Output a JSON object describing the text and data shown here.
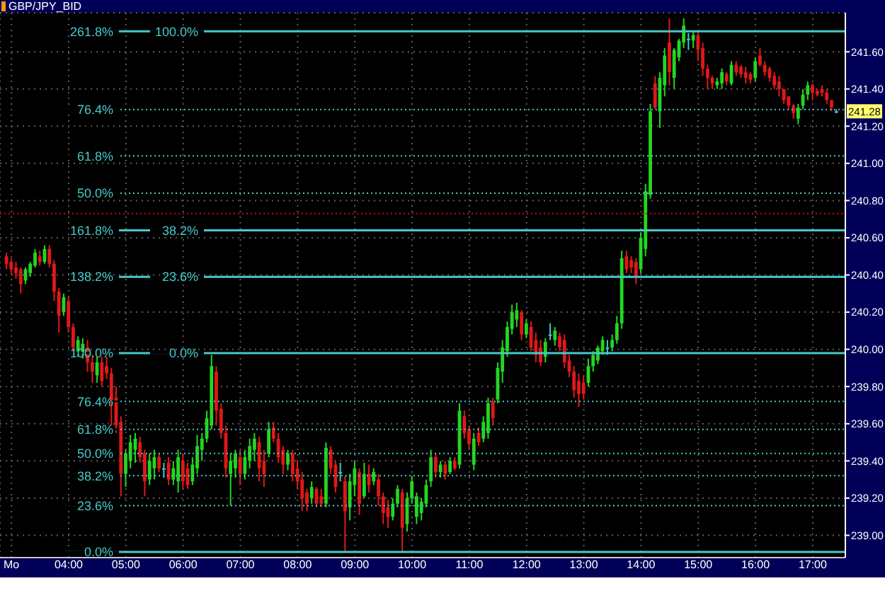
{
  "chart_data": {
    "type": "candlestick",
    "title": "GBP/JPY_BID",
    "x": [
      2.917,
      3,
      3.083,
      3.167,
      3.25,
      3.333,
      3.417,
      3.5,
      3.583,
      3.667,
      3.75,
      3.833,
      3.917,
      4,
      4.083,
      4.167,
      4.25,
      4.333,
      4.417,
      4.5,
      4.583,
      4.667,
      4.75,
      4.833,
      4.917,
      5,
      5.083,
      5.167,
      5.25,
      5.333,
      5.417,
      5.5,
      5.583,
      5.667,
      5.75,
      5.833,
      5.917,
      6,
      6.083,
      6.167,
      6.25,
      6.333,
      6.417,
      6.5,
      6.583,
      6.667,
      6.75,
      6.833,
      6.917,
      7,
      7.083,
      7.167,
      7.25,
      7.333,
      7.417,
      7.5,
      7.583,
      7.667,
      7.75,
      7.833,
      7.917,
      8,
      8.083,
      8.167,
      8.25,
      8.333,
      8.417,
      8.5,
      8.583,
      8.667,
      8.75,
      8.833,
      8.917,
      9,
      9.083,
      9.167,
      9.25,
      9.333,
      9.417,
      9.5,
      9.583,
      9.667,
      9.75,
      9.833,
      9.917,
      10,
      10.083,
      10.167,
      10.25,
      10.333,
      10.417,
      10.5,
      10.583,
      10.667,
      10.75,
      10.833,
      10.917,
      11,
      11.083,
      11.167,
      11.25,
      11.333,
      11.417,
      11.5,
      11.583,
      11.667,
      11.75,
      11.833,
      11.917,
      12,
      12.083,
      12.167,
      12.25,
      12.333,
      12.417,
      12.5,
      12.583,
      12.667,
      12.75,
      12.833,
      12.917,
      13,
      13.083,
      13.167,
      13.25,
      13.333,
      13.417,
      13.5,
      13.583,
      13.667,
      13.75,
      13.833,
      13.917,
      14,
      14.083,
      14.167,
      14.25,
      14.333,
      14.417,
      14.5,
      14.583,
      14.667,
      14.75,
      14.833,
      14.917,
      15,
      15.083,
      15.167,
      15.25,
      15.333,
      15.417,
      15.5,
      15.583,
      15.667,
      15.75,
      15.833,
      15.917,
      16,
      16.083,
      16.167,
      16.25,
      16.333,
      16.417,
      16.5,
      16.583,
      16.667,
      16.75,
      16.833,
      16.917,
      17,
      17.083,
      17.167,
      17.25,
      17.333,
      17.417
    ],
    "ohlc": [
      [
        240.5,
        240.52,
        240.43,
        240.46
      ],
      [
        240.47,
        240.49,
        240.41,
        240.43
      ],
      [
        240.44,
        240.47,
        240.38,
        240.41
      ],
      [
        240.43,
        240.44,
        240.3,
        240.35
      ],
      [
        240.37,
        240.44,
        240.35,
        240.43
      ],
      [
        240.41,
        240.47,
        240.39,
        240.46
      ],
      [
        240.45,
        240.54,
        240.44,
        240.52
      ],
      [
        240.5,
        240.53,
        240.45,
        240.47
      ],
      [
        240.47,
        240.56,
        240.46,
        240.54
      ],
      [
        240.54,
        240.56,
        240.44,
        240.46
      ],
      [
        240.46,
        240.48,
        240.26,
        240.31
      ],
      [
        240.31,
        240.33,
        240.09,
        240.18
      ],
      [
        240.2,
        240.3,
        240.18,
        240.28
      ],
      [
        240.26,
        240.28,
        240.09,
        240.12
      ],
      [
        240.12,
        240.14,
        239.97,
        240.01
      ],
      [
        239.99,
        240.07,
        239.96,
        240.05
      ],
      [
        239.97,
        240.06,
        239.95,
        240.03
      ],
      [
        240.01,
        240.05,
        239.88,
        239.93
      ],
      [
        239.93,
        239.97,
        239.82,
        239.88
      ],
      [
        239.86,
        239.96,
        239.82,
        239.93
      ],
      [
        239.93,
        239.96,
        239.8,
        239.83
      ],
      [
        239.91,
        239.96,
        239.84,
        239.87
      ],
      [
        239.87,
        239.9,
        239.59,
        239.71
      ],
      [
        239.74,
        239.8,
        239.55,
        239.59
      ],
      [
        239.61,
        239.64,
        239.21,
        239.33
      ],
      [
        239.33,
        239.46,
        239.26,
        239.44
      ],
      [
        239.4,
        239.54,
        239.36,
        239.5
      ],
      [
        239.46,
        239.55,
        239.39,
        239.52
      ],
      [
        239.5,
        239.53,
        239.39,
        239.42
      ],
      [
        239.44,
        239.46,
        239.21,
        239.29
      ],
      [
        239.3,
        239.44,
        239.27,
        239.4
      ],
      [
        239.36,
        239.46,
        239.3,
        239.42
      ],
      [
        239.42,
        239.44,
        239.34,
        239.36
      ],
      [
        239.36,
        239.39,
        239.31,
        239.36
      ],
      [
        239.39,
        239.42,
        239.27,
        239.3
      ],
      [
        239.3,
        239.4,
        239.27,
        239.36
      ],
      [
        239.29,
        239.46,
        239.23,
        239.42
      ],
      [
        239.4,
        239.44,
        239.25,
        239.29
      ],
      [
        239.36,
        239.39,
        239.25,
        239.27
      ],
      [
        239.29,
        239.42,
        239.27,
        239.38
      ],
      [
        239.36,
        239.54,
        239.33,
        239.48
      ],
      [
        239.46,
        239.55,
        239.4,
        239.52
      ],
      [
        239.52,
        239.67,
        239.5,
        239.63
      ],
      [
        239.59,
        239.97,
        239.57,
        239.91
      ],
      [
        239.88,
        239.91,
        239.59,
        239.67
      ],
      [
        239.68,
        239.71,
        239.52,
        239.55
      ],
      [
        239.55,
        239.59,
        239.31,
        239.36
      ],
      [
        239.33,
        239.44,
        239.16,
        239.4
      ],
      [
        239.36,
        239.46,
        239.31,
        239.44
      ],
      [
        239.42,
        239.46,
        239.27,
        239.33
      ],
      [
        239.33,
        239.46,
        239.3,
        239.42
      ],
      [
        239.4,
        239.52,
        239.36,
        239.48
      ],
      [
        239.46,
        239.55,
        239.4,
        239.52
      ],
      [
        239.5,
        239.53,
        239.29,
        239.36
      ],
      [
        239.4,
        239.46,
        239.26,
        239.33
      ],
      [
        239.44,
        239.61,
        239.42,
        239.57
      ],
      [
        239.58,
        239.61,
        239.5,
        239.52
      ],
      [
        239.52,
        239.55,
        239.39,
        239.42
      ],
      [
        239.46,
        239.48,
        239.33,
        239.38
      ],
      [
        239.38,
        239.46,
        239.35,
        239.44
      ],
      [
        239.44,
        239.46,
        239.29,
        239.33
      ],
      [
        239.36,
        239.4,
        239.25,
        239.29
      ],
      [
        239.3,
        239.34,
        239.13,
        239.2
      ],
      [
        239.23,
        239.25,
        239.13,
        239.17
      ],
      [
        239.2,
        239.29,
        239.17,
        239.26
      ],
      [
        239.25,
        239.26,
        239.15,
        239.17
      ],
      [
        239.21,
        239.25,
        239.15,
        239.17
      ],
      [
        239.17,
        239.5,
        239.15,
        239.47
      ],
      [
        239.46,
        239.48,
        239.33,
        239.36
      ],
      [
        239.38,
        239.4,
        239.23,
        239.26
      ],
      [
        239.34,
        239.39,
        239.29,
        239.34
      ],
      [
        239.29,
        239.32,
        238.91,
        239.13
      ],
      [
        239.15,
        239.33,
        239.08,
        239.29
      ],
      [
        239.27,
        239.4,
        239.21,
        239.36
      ],
      [
        239.34,
        239.36,
        239.11,
        239.17
      ],
      [
        239.21,
        239.39,
        239.2,
        239.33
      ],
      [
        239.33,
        239.38,
        239.23,
        239.27
      ],
      [
        239.29,
        239.36,
        239.27,
        239.34
      ],
      [
        239.3,
        239.33,
        239.16,
        239.21
      ],
      [
        239.21,
        239.23,
        239.06,
        239.12
      ],
      [
        239.15,
        239.19,
        239.04,
        239.1
      ],
      [
        239.1,
        239.2,
        239.08,
        239.17
      ],
      [
        239.17,
        239.27,
        239.15,
        239.25
      ],
      [
        239.23,
        239.25,
        238.91,
        239.04
      ],
      [
        239.06,
        239.23,
        239.02,
        239.2
      ],
      [
        239.2,
        239.32,
        239.17,
        239.29
      ],
      [
        239.1,
        239.23,
        239.06,
        239.21
      ],
      [
        239.12,
        239.2,
        239.08,
        239.18
      ],
      [
        239.17,
        239.3,
        239.15,
        239.27
      ],
      [
        239.29,
        239.46,
        239.26,
        239.42
      ],
      [
        239.42,
        239.44,
        239.31,
        239.34
      ],
      [
        239.34,
        239.4,
        239.31,
        239.38
      ],
      [
        239.38,
        239.4,
        239.3,
        239.33
      ],
      [
        239.34,
        239.42,
        239.33,
        239.4
      ],
      [
        239.4,
        239.42,
        239.35,
        239.36
      ],
      [
        239.38,
        239.71,
        239.36,
        239.67
      ],
      [
        239.64,
        239.67,
        239.52,
        239.55
      ],
      [
        239.57,
        239.59,
        239.46,
        239.49
      ],
      [
        239.38,
        239.55,
        239.35,
        239.52
      ],
      [
        239.55,
        239.58,
        239.48,
        239.5
      ],
      [
        239.52,
        239.64,
        239.5,
        239.61
      ],
      [
        239.55,
        239.74,
        239.52,
        239.71
      ],
      [
        239.72,
        239.74,
        239.59,
        239.63
      ],
      [
        239.73,
        239.93,
        239.71,
        239.9
      ],
      [
        239.88,
        240.05,
        239.82,
        240.01
      ],
      [
        239.99,
        240.15,
        239.96,
        240.12
      ],
      [
        240.11,
        240.24,
        240.08,
        240.2
      ],
      [
        240.16,
        240.25,
        240.12,
        240.21
      ],
      [
        240.2,
        240.21,
        240.05,
        240.08
      ],
      [
        240.08,
        240.16,
        240.06,
        240.14
      ],
      [
        240.12,
        240.15,
        239.99,
        240.01
      ],
      [
        240.05,
        240.09,
        239.93,
        239.97
      ],
      [
        240.01,
        240.05,
        239.91,
        239.93
      ],
      [
        239.96,
        240.06,
        239.93,
        240.04
      ],
      [
        240.08,
        240.14,
        240.05,
        240.08
      ],
      [
        240.05,
        240.12,
        240.02,
        240.1
      ],
      [
        240.07,
        240.09,
        239.99,
        240.01
      ],
      [
        240.05,
        240.08,
        239.9,
        239.93
      ],
      [
        239.94,
        239.97,
        239.85,
        239.88
      ],
      [
        239.88,
        239.91,
        239.74,
        239.78
      ],
      [
        239.83,
        239.87,
        239.69,
        239.76
      ],
      [
        239.82,
        239.86,
        239.73,
        239.76
      ],
      [
        239.82,
        239.95,
        239.8,
        239.91
      ],
      [
        239.91,
        239.99,
        239.88,
        239.97
      ],
      [
        239.94,
        240.02,
        239.92,
        240.01
      ],
      [
        239.99,
        240.07,
        239.97,
        240.05
      ],
      [
        240.01,
        240.05,
        239.97,
        240.01
      ],
      [
        240.01,
        240.08,
        239.99,
        240.05
      ],
      [
        240.05,
        240.18,
        240.03,
        240.14
      ],
      [
        240.14,
        240.53,
        240.11,
        240.49
      ],
      [
        240.5,
        240.53,
        240.41,
        240.43
      ],
      [
        240.48,
        240.5,
        240.41,
        240.44
      ],
      [
        240.47,
        240.49,
        240.35,
        240.39
      ],
      [
        240.43,
        240.63,
        240.41,
        240.6
      ],
      [
        240.54,
        240.89,
        240.5,
        240.85
      ],
      [
        240.83,
        241.32,
        240.81,
        241.28
      ],
      [
        241.43,
        241.47,
        241.29,
        241.3
      ],
      [
        241.28,
        241.49,
        241.19,
        241.46
      ],
      [
        241.42,
        241.62,
        241.36,
        241.58
      ],
      [
        241.65,
        241.78,
        241.42,
        241.49
      ],
      [
        241.46,
        241.62,
        241.4,
        241.61
      ],
      [
        241.57,
        241.67,
        241.55,
        241.66
      ],
      [
        241.65,
        241.78,
        241.62,
        241.74
      ],
      [
        241.67,
        241.7,
        241.61,
        241.67
      ],
      [
        241.66,
        241.71,
        241.62,
        241.69
      ],
      [
        241.69,
        241.71,
        241.55,
        241.61
      ],
      [
        241.62,
        241.65,
        241.47,
        241.51
      ],
      [
        241.51,
        241.53,
        241.4,
        241.46
      ],
      [
        241.46,
        241.47,
        241.4,
        241.43
      ],
      [
        241.42,
        241.46,
        241.4,
        241.44
      ],
      [
        241.43,
        241.51,
        241.4,
        241.49
      ],
      [
        241.48,
        241.49,
        241.42,
        241.44
      ],
      [
        241.43,
        241.55,
        241.42,
        241.53
      ],
      [
        241.53,
        241.55,
        241.47,
        241.49
      ],
      [
        241.52,
        241.53,
        241.46,
        241.48
      ],
      [
        241.49,
        241.52,
        241.43,
        241.46
      ],
      [
        241.48,
        241.49,
        241.43,
        241.45
      ],
      [
        241.46,
        241.57,
        241.44,
        241.55
      ],
      [
        241.58,
        241.62,
        241.52,
        241.53
      ],
      [
        241.53,
        241.55,
        241.47,
        241.49
      ],
      [
        241.51,
        241.52,
        241.44,
        241.46
      ],
      [
        241.47,
        241.49,
        241.4,
        241.42
      ],
      [
        241.44,
        241.47,
        241.36,
        241.4
      ],
      [
        241.4,
        241.4,
        241.32,
        241.34
      ],
      [
        241.36,
        241.36,
        241.29,
        241.31
      ],
      [
        241.31,
        241.32,
        241.24,
        241.27
      ],
      [
        241.24,
        241.32,
        241.21,
        241.3
      ],
      [
        241.31,
        241.4,
        241.29,
        241.37
      ],
      [
        241.37,
        241.44,
        241.34,
        241.42
      ],
      [
        241.42,
        241.43,
        241.34,
        241.38
      ],
      [
        241.39,
        241.4,
        241.36,
        241.37
      ],
      [
        241.4,
        241.42,
        241.36,
        241.38
      ],
      [
        241.38,
        241.4,
        241.32,
        241.34
      ],
      [
        241.34,
        241.34,
        241.28,
        241.3
      ],
      [
        241.28,
        241.29,
        241.27,
        241.28
      ]
    ],
    "colors": [
      "#e01818",
      "#e01818",
      "#e01818",
      "#e01818",
      "#22d622",
      "#22d622",
      "#22d622",
      "#e01818",
      "#22d622",
      "#e01818",
      "#e01818",
      "#e01818",
      "#22d622",
      "#e01818",
      "#e01818",
      "#22d622",
      "#22d622",
      "#e01818",
      "#e01818",
      "#22d622",
      "#e01818",
      "#e01818",
      "#e01818",
      "#e01818",
      "#e01818",
      "#22d622",
      "#22d622",
      "#22d622",
      "#e01818",
      "#e01818",
      "#22d622",
      "#22d622",
      "#e01818",
      "#40c8c8",
      "#e01818",
      "#22d622",
      "#22d622",
      "#e01818",
      "#e01818",
      "#22d622",
      "#22d622",
      "#22d622",
      "#22d622",
      "#22d622",
      "#e01818",
      "#e01818",
      "#e01818",
      "#22d622",
      "#22d622",
      "#e01818",
      "#22d622",
      "#22d622",
      "#22d622",
      "#e01818",
      "#e01818",
      "#22d622",
      "#e01818",
      "#e01818",
      "#e01818",
      "#22d622",
      "#e01818",
      "#e01818",
      "#e01818",
      "#e01818",
      "#22d622",
      "#e01818",
      "#e01818",
      "#22d622",
      "#e01818",
      "#e01818",
      "#40c8c8",
      "#e01818",
      "#22d622",
      "#22d622",
      "#e01818",
      "#22d622",
      "#e01818",
      "#22d622",
      "#e01818",
      "#e01818",
      "#e01818",
      "#22d622",
      "#22d622",
      "#e01818",
      "#22d622",
      "#22d622",
      "#22d622",
      "#22d622",
      "#22d622",
      "#22d622",
      "#e01818",
      "#22d622",
      "#e01818",
      "#22d622",
      "#e01818",
      "#22d622",
      "#e01818",
      "#e01818",
      "#22d622",
      "#e01818",
      "#22d622",
      "#22d622",
      "#e01818",
      "#22d622",
      "#22d622",
      "#22d622",
      "#22d622",
      "#22d622",
      "#e01818",
      "#22d622",
      "#e01818",
      "#e01818",
      "#e01818",
      "#22d622",
      "#40c8c8",
      "#22d622",
      "#e01818",
      "#e01818",
      "#e01818",
      "#e01818",
      "#e01818",
      "#e01818",
      "#22d622",
      "#22d622",
      "#22d622",
      "#22d622",
      "#40c8c8",
      "#22d622",
      "#22d622",
      "#22d622",
      "#e01818",
      "#e01818",
      "#e01818",
      "#22d622",
      "#22d622",
      "#22d622",
      "#e01818",
      "#22d622",
      "#22d622",
      "#e01818",
      "#22d622",
      "#22d622",
      "#22d622",
      "#40c8c8",
      "#22d622",
      "#e01818",
      "#e01818",
      "#e01818",
      "#e01818",
      "#22d622",
      "#22d622",
      "#e01818",
      "#22d622",
      "#e01818",
      "#e01818",
      "#e01818",
      "#e01818",
      "#22d622",
      "#e01818",
      "#e01818",
      "#e01818",
      "#e01818",
      "#e01818",
      "#e01818",
      "#e01818",
      "#e01818",
      "#22d622",
      "#22d622",
      "#22d622",
      "#e01818",
      "#e01818",
      "#e01818",
      "#e01818",
      "#e01818",
      "#40c8c8"
    ],
    "xlim": [
      2.8,
      17.57
    ],
    "xticks": [
      {
        "value": 3,
        "label": "Mo"
      },
      {
        "value": 4,
        "label": "04:00"
      },
      {
        "value": 5,
        "label": "05:00"
      },
      {
        "value": 6,
        "label": "06:00"
      },
      {
        "value": 7,
        "label": "07:00"
      },
      {
        "value": 8,
        "label": "08:00"
      },
      {
        "value": 9,
        "label": "09:00"
      },
      {
        "value": 10,
        "label": "10:00"
      },
      {
        "value": 11,
        "label": "11:00"
      },
      {
        "value": 12,
        "label": "12:00"
      },
      {
        "value": 13,
        "label": "13:00"
      },
      {
        "value": 14,
        "label": "14:00"
      },
      {
        "value": 15,
        "label": "15:00"
      },
      {
        "value": 16,
        "label": "16:00"
      },
      {
        "value": 17,
        "label": "17:00"
      }
    ],
    "ylim": [
      238.88,
      241.81
    ],
    "yticks": [
      {
        "value": 239,
        "label": "239.00"
      },
      {
        "value": 239.2,
        "label": "239.20"
      },
      {
        "value": 239.4,
        "label": "239.40"
      },
      {
        "value": 239.6,
        "label": "239.60"
      },
      {
        "value": 239.8,
        "label": "239.80"
      },
      {
        "value": 240,
        "label": "240.00"
      },
      {
        "value": 240.2,
        "label": "240.20"
      },
      {
        "value": 240.4,
        "label": "240.40"
      },
      {
        "value": 240.6,
        "label": "240.60"
      },
      {
        "value": 240.8,
        "label": "240.80"
      },
      {
        "value": 241,
        "label": "241.00"
      },
      {
        "value": 241.2,
        "label": "241.20"
      },
      {
        "value": 241.4,
        "label": "241.40"
      },
      {
        "value": 241.6,
        "label": "241.60"
      }
    ],
    "grid": true,
    "ref_lines": [
      {
        "axis": "y",
        "value": 238.91,
        "color": "#48c8c8",
        "line_style": "solid"
      },
      {
        "axis": "y",
        "value": 239.16,
        "color": "#48c8c8",
        "line_style": "dotted"
      },
      {
        "axis": "y",
        "value": 239.32,
        "color": "#48c8c8",
        "line_style": "dotted"
      },
      {
        "axis": "y",
        "value": 239.44,
        "color": "#48c8c8",
        "line_style": "dotted"
      },
      {
        "axis": "y",
        "value": 239.57,
        "color": "#48c8c8",
        "line_style": "dotted"
      },
      {
        "axis": "y",
        "value": 239.72,
        "color": "#48c8c8",
        "line_style": "dotted"
      },
      {
        "axis": "y",
        "value": 239.98,
        "color": "#48c8c8",
        "line_style": "solid"
      },
      {
        "axis": "y",
        "value": 240.39,
        "color": "#48c8c8",
        "line_style": "solid"
      },
      {
        "axis": "y",
        "value": 240.64,
        "color": "#48c8c8",
        "line_style": "solid"
      },
      {
        "axis": "y",
        "value": 240.73,
        "color": "#c81010",
        "line_style": "dotted"
      },
      {
        "axis": "y",
        "value": 240.84,
        "color": "#48c8c8",
        "line_style": "dotted"
      },
      {
        "axis": "y",
        "value": 241.04,
        "color": "#48c8c8",
        "line_style": "dotted"
      },
      {
        "axis": "y",
        "value": 241.29,
        "color": "#48c8c8",
        "line_style": "dotted"
      },
      {
        "axis": "y",
        "value": 241.71,
        "color": "#48c8c8",
        "line_style": "solid"
      }
    ],
    "annotations": [
      {
        "text": "0.0%",
        "y": 238.91
      },
      {
        "text": "23.6%",
        "y": 239.16
      },
      {
        "text": "38.2%",
        "y": 239.32
      },
      {
        "text": "50.0%",
        "y": 239.44
      },
      {
        "text": "61.8%",
        "y": 239.57
      },
      {
        "text": "76.4%",
        "y": 239.72
      },
      {
        "text": "100.0%",
        "y": 239.98
      },
      {
        "text": "138.2%",
        "y": 240.39
      },
      {
        "text": "161.8%",
        "y": 240.64
      },
      {
        "text": "261.8%",
        "y": 241.71
      },
      {
        "text": "0.0%",
        "y": 239.98
      },
      {
        "text": "23.6%",
        "y": 240.39
      },
      {
        "text": "38.2%",
        "y": 240.64
      },
      {
        "text": "50.0%",
        "y": 240.84
      },
      {
        "text": "61.8%",
        "y": 241.04
      },
      {
        "text": "76.4%",
        "y": 241.29
      },
      {
        "text": "100.0%",
        "y": 241.71
      },
      {
        "text": "241.28",
        "y": 241.28
      }
    ]
  }
}
